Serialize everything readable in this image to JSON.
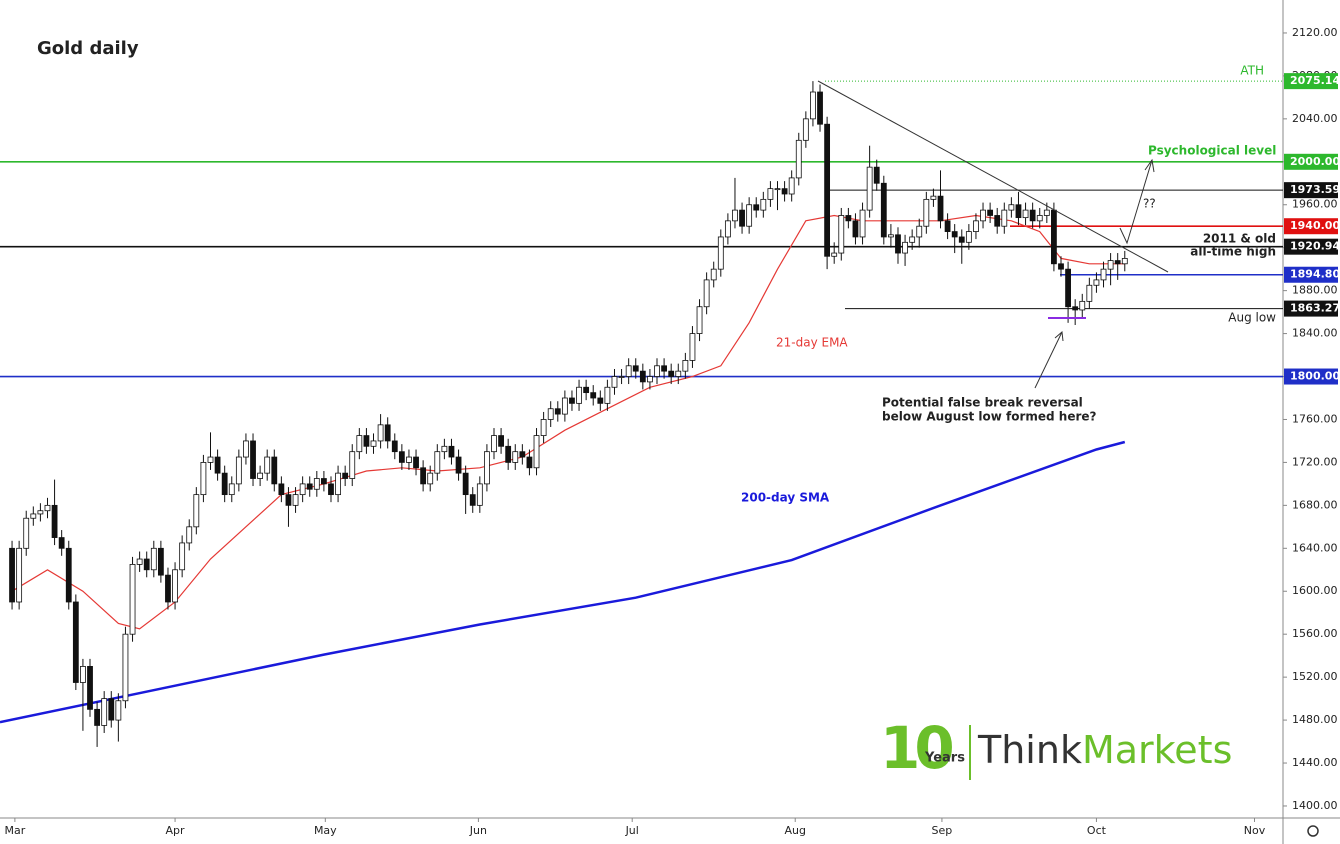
{
  "chart_data": {
    "type": "candlestick",
    "title": "Gold daily",
    "categories": [
      null,
      null,
      null,
      null,
      null,
      null,
      null,
      null,
      null,
      null,
      null,
      null,
      null,
      null,
      null,
      null,
      null,
      null,
      null,
      null,
      null,
      null,
      null,
      null,
      null,
      null,
      null,
      null,
      null,
      null,
      null,
      null,
      null,
      null,
      null,
      null,
      null,
      null,
      null,
      null,
      null,
      null,
      null,
      null,
      null,
      null,
      null,
      null,
      null,
      null,
      null,
      null,
      null,
      null,
      null,
      null,
      null,
      null,
      null,
      null,
      null,
      null,
      null,
      null,
      null,
      null,
      null,
      null,
      null,
      null,
      null,
      null,
      null,
      null,
      null,
      null,
      null,
      null,
      null,
      null,
      null,
      null,
      null,
      null,
      null,
      null,
      null,
      null,
      null,
      null,
      null,
      null,
      null,
      null,
      null,
      null,
      null,
      null,
      null,
      null,
      null,
      null,
      null,
      null,
      null,
      null,
      null,
      null,
      null,
      null,
      null,
      null,
      null,
      null,
      null,
      null,
      null,
      null,
      null,
      null,
      null,
      null,
      null,
      null,
      null,
      null,
      null,
      null,
      null,
      null,
      null,
      null,
      null,
      null,
      null,
      null,
      null,
      null,
      null,
      null,
      null,
      null,
      null,
      null,
      null,
      null,
      null,
      null,
      null,
      null,
      null,
      null,
      null,
      null,
      null,
      null,
      null,
      null
    ],
    "open": [
      1640,
      1590,
      1640,
      1668,
      1672,
      1675,
      1680,
      1650,
      1640,
      1590,
      1515,
      1530,
      1490,
      1475,
      1500,
      1480,
      1498,
      1560,
      1625,
      1630,
      1620,
      1640,
      1615,
      1590,
      1620,
      1645,
      1660,
      1690,
      1720,
      1725,
      1710,
      1690,
      1700,
      1725,
      1740,
      1705,
      1710,
      1725,
      1700,
      1690,
      1680,
      1690,
      1700,
      1695,
      1705,
      1700,
      1690,
      1710,
      1705,
      1730,
      1745,
      1735,
      1740,
      1755,
      1740,
      1730,
      1720,
      1725,
      1715,
      1700,
      1710,
      1730,
      1735,
      1725,
      1710,
      1690,
      1680,
      1700,
      1730,
      1745,
      1735,
      1720,
      1730,
      1725,
      1715,
      1745,
      1760,
      1770,
      1765,
      1780,
      1775,
      1790,
      1785,
      1780,
      1775,
      1790,
      1800,
      1800,
      1810,
      1805,
      1795,
      1800,
      1810,
      1805,
      1800,
      1805,
      1815,
      1840,
      1865,
      1890,
      1900,
      1930,
      1945,
      1955,
      1940,
      1960,
      1955,
      1965,
      1975,
      1975,
      1970,
      1985,
      2020,
      2040,
      2065,
      2035,
      1912,
      1915,
      1950,
      1945,
      1930,
      1955,
      1995,
      1980,
      1930,
      1932,
      1915,
      1925,
      1930,
      1940,
      1965,
      1968,
      1945,
      1935,
      1930,
      1925,
      1935,
      1945,
      1955,
      1950,
      1940,
      1955,
      1960,
      1948,
      1955,
      1945,
      1950,
      1955,
      1905,
      1900,
      1865,
      1862,
      1870,
      1885,
      1890,
      1900,
      1908,
      1905
    ],
    "high": [
      1647,
      1647,
      1675,
      1679,
      1682,
      1687,
      1704,
      1657,
      1647,
      1597,
      1537,
      1537,
      1497,
      1507,
      1507,
      1505,
      1567,
      1632,
      1637,
      1637,
      1647,
      1647,
      1622,
      1627,
      1652,
      1667,
      1697,
      1727,
      1748,
      1732,
      1717,
      1707,
      1732,
      1747,
      1747,
      1717,
      1732,
      1732,
      1707,
      1697,
      1697,
      1707,
      1707,
      1712,
      1712,
      1707,
      1717,
      1717,
      1737,
      1752,
      1752,
      1747,
      1765,
      1762,
      1747,
      1737,
      1732,
      1732,
      1722,
      1717,
      1737,
      1742,
      1742,
      1732,
      1717,
      1697,
      1707,
      1737,
      1752,
      1752,
      1742,
      1737,
      1737,
      1732,
      1752,
      1767,
      1777,
      1777,
      1787,
      1787,
      1797,
      1797,
      1792,
      1787,
      1797,
      1807,
      1807,
      1817,
      1817,
      1812,
      1807,
      1817,
      1817,
      1812,
      1812,
      1822,
      1847,
      1872,
      1897,
      1907,
      1937,
      1952,
      1985,
      1962,
      1967,
      1967,
      1972,
      1982,
      1982,
      1982,
      1992,
      2027,
      2047,
      2075.14,
      2072,
      2042,
      1925,
      1957,
      1957,
      1952,
      1962,
      2015,
      2002,
      1987,
      1942,
      1939,
      1932,
      1937,
      1947,
      1972,
      1975,
      1992,
      1952,
      1942,
      1937,
      1942,
      1952,
      1962,
      1962,
      1957,
      1962,
      1967,
      1972,
      1962,
      1962,
      1957,
      1962,
      1962,
      1912,
      1907,
      1872,
      1877,
      1892,
      1897,
      1907,
      1915,
      1915,
      1917
    ],
    "low": [
      1583,
      1583,
      1633,
      1661,
      1665,
      1668,
      1643,
      1633,
      1583,
      1508,
      1470,
      1483,
      1455,
      1468,
      1473,
      1460,
      1491,
      1553,
      1618,
      1613,
      1613,
      1608,
      1583,
      1583,
      1613,
      1638,
      1653,
      1683,
      1713,
      1703,
      1683,
      1683,
      1693,
      1718,
      1698,
      1698,
      1703,
      1693,
      1683,
      1660,
      1673,
      1683,
      1688,
      1688,
      1693,
      1683,
      1683,
      1698,
      1698,
      1723,
      1728,
      1728,
      1733,
      1733,
      1723,
      1713,
      1713,
      1708,
      1693,
      1693,
      1703,
      1723,
      1718,
      1703,
      1672,
      1673,
      1673,
      1693,
      1723,
      1728,
      1713,
      1713,
      1718,
      1708,
      1708,
      1738,
      1753,
      1758,
      1758,
      1768,
      1768,
      1778,
      1773,
      1768,
      1768,
      1783,
      1793,
      1793,
      1798,
      1788,
      1788,
      1793,
      1798,
      1793,
      1793,
      1798,
      1808,
      1833,
      1858,
      1883,
      1893,
      1923,
      1938,
      1933,
      1933,
      1948,
      1948,
      1958,
      1955,
      1963,
      1963,
      1978,
      2013,
      2033,
      2028,
      1900,
      1905,
      1908,
      1938,
      1923,
      1923,
      1948,
      1973,
      1923,
      1920,
      1905,
      1903,
      1918,
      1920,
      1933,
      1958,
      1938,
      1928,
      1915,
      1905,
      1918,
      1928,
      1938,
      1943,
      1933,
      1933,
      1948,
      1941,
      1941,
      1938,
      1938,
      1943,
      1898,
      1893,
      1850,
      1848,
      1855,
      1863,
      1878,
      1883,
      1885,
      1890,
      1898
    ],
    "close": [
      1590,
      1640,
      1668,
      1672,
      1675,
      1680,
      1650,
      1640,
      1590,
      1515,
      1530,
      1490,
      1475,
      1500,
      1480,
      1498,
      1560,
      1625,
      1630,
      1620,
      1640,
      1615,
      1590,
      1620,
      1645,
      1660,
      1690,
      1720,
      1725,
      1710,
      1690,
      1700,
      1725,
      1740,
      1705,
      1710,
      1725,
      1700,
      1690,
      1680,
      1690,
      1700,
      1695,
      1705,
      1700,
      1690,
      1710,
      1705,
      1730,
      1745,
      1735,
      1740,
      1755,
      1740,
      1730,
      1720,
      1725,
      1715,
      1700,
      1710,
      1730,
      1735,
      1725,
      1710,
      1690,
      1680,
      1700,
      1730,
      1745,
      1735,
      1720,
      1730,
      1725,
      1715,
      1745,
      1760,
      1770,
      1765,
      1780,
      1775,
      1790,
      1785,
      1780,
      1775,
      1790,
      1800,
      1800,
      1810,
      1805,
      1795,
      1800,
      1810,
      1805,
      1800,
      1805,
      1815,
      1840,
      1865,
      1890,
      1900,
      1930,
      1945,
      1955,
      1940,
      1960,
      1955,
      1965,
      1975,
      1975,
      1970,
      1985,
      2020,
      2040,
      2065,
      2035,
      1912,
      1915,
      1950,
      1945,
      1930,
      1955,
      1995,
      1980,
      1930,
      1932,
      1915,
      1925,
      1930,
      1940,
      1965,
      1968,
      1945,
      1935,
      1930,
      1925,
      1935,
      1945,
      1955,
      1950,
      1940,
      1955,
      1960,
      1948,
      1955,
      1945,
      1950,
      1955,
      1905,
      1900,
      1865,
      1862,
      1870,
      1885,
      1890,
      1900,
      1908,
      1905,
      1910
    ],
    "lines": [
      {
        "name": "21-day EMA",
        "color": "#e53935",
        "x": [
          0,
          5,
          10,
          15,
          18,
          23,
          28,
          33,
          38,
          44,
          50,
          55,
          60,
          66,
          72,
          78,
          84,
          90,
          96,
          100,
          104,
          108,
          112,
          116,
          120,
          125,
          131,
          136,
          141,
          145,
          148,
          152,
          157
        ],
        "values": [
          1600,
          1620,
          1600,
          1570,
          1565,
          1590,
          1630,
          1660,
          1690,
          1700,
          1712,
          1715,
          1712,
          1715,
          1725,
          1750,
          1770,
          1790,
          1800,
          1810,
          1850,
          1900,
          1945,
          1950,
          1945,
          1945,
          1945,
          1950,
          1945,
          1935,
          1910,
          1905,
          1905
        ]
      },
      {
        "name": "200-day SMA",
        "color": "#1a1adb",
        "x": [
          -1.7,
          23,
          44,
          66,
          88,
          110,
          131,
          153,
          157
        ],
        "values": [
          1478,
          1512,
          1541,
          1569,
          1594,
          1629,
          1680,
          1732,
          1739
        ]
      }
    ],
    "levels": [
      {
        "value": 2075.14,
        "label": "2075.14",
        "color": "#2db82d"
      },
      {
        "value": 2000,
        "label": "2000.00",
        "color": "#2db82d"
      },
      {
        "value": 1973.59,
        "label": "1973.59",
        "color": "#111111"
      },
      {
        "value": 1940,
        "label": "1940.00",
        "color": "#e01010"
      },
      {
        "value": 1920.94,
        "label": "1920.94",
        "color": "#111111"
      },
      {
        "value": 1894.8,
        "label": "1894.80",
        "color": "#1f2fc8"
      },
      {
        "value": 1863.27,
        "label": "1863.27",
        "color": "#111111"
      },
      {
        "value": 1800,
        "label": "1800.00",
        "color": "#1f2fc8"
      }
    ],
    "xlim": [
      -1.7,
      178.9
    ],
    "xticks": [
      {
        "value": 0.4,
        "label": "Mar"
      },
      {
        "value": 23,
        "label": "Apr"
      },
      {
        "value": 44.2,
        "label": "May"
      },
      {
        "value": 65.8,
        "label": "Jun"
      },
      {
        "value": 87.5,
        "label": "Jul"
      },
      {
        "value": 110.5,
        "label": "Aug"
      },
      {
        "value": 131.2,
        "label": "Sep"
      },
      {
        "value": 153,
        "label": "Oct"
      },
      {
        "value": 175.3,
        "label": "Nov"
      }
    ],
    "ylim": [
      1388.8,
      2150.7
    ],
    "yticks": [
      {
        "value": 1400,
        "label": "1400.00"
      },
      {
        "value": 1440,
        "label": "1440.00"
      },
      {
        "value": 1480,
        "label": "1480.00"
      },
      {
        "value": 1520,
        "label": "1520.00"
      },
      {
        "value": 1560,
        "label": "1560.00"
      },
      {
        "value": 1600,
        "label": "1600.00"
      },
      {
        "value": 1640,
        "label": "1640.00"
      },
      {
        "value": 1680,
        "label": "1680.00"
      },
      {
        "value": 1720,
        "label": "1720.00"
      },
      {
        "value": 1760,
        "label": "1760.00"
      },
      {
        "value": 1800,
        "label": "1800.00"
      },
      {
        "value": 1840,
        "label": "1840.00"
      },
      {
        "value": 1880,
        "label": "1880.00"
      },
      {
        "value": 1920,
        "label": "1920.00"
      },
      {
        "value": 1960,
        "label": "1960.00"
      },
      {
        "value": 2000,
        "label": "2000.00"
      },
      {
        "value": 2040,
        "label": "2040.00"
      },
      {
        "value": 2080,
        "label": "2080.00"
      },
      {
        "value": 2120,
        "label": "2120.00"
      }
    ],
    "annotations": {
      "ath": "ATH",
      "psych": "Psychological level",
      "question": "??",
      "old_high_1": "2011 & old",
      "old_high_2": "all-time high",
      "aug_low": "Aug low",
      "ema": "21-day EMA",
      "sma": "200-day SMA",
      "false_break_1": "Potential false break reversal",
      "false_break_2": "below August low formed here?"
    },
    "logo": {
      "digits": "10",
      "years": "Years",
      "think": "Think",
      "markets": "Markets"
    }
  }
}
